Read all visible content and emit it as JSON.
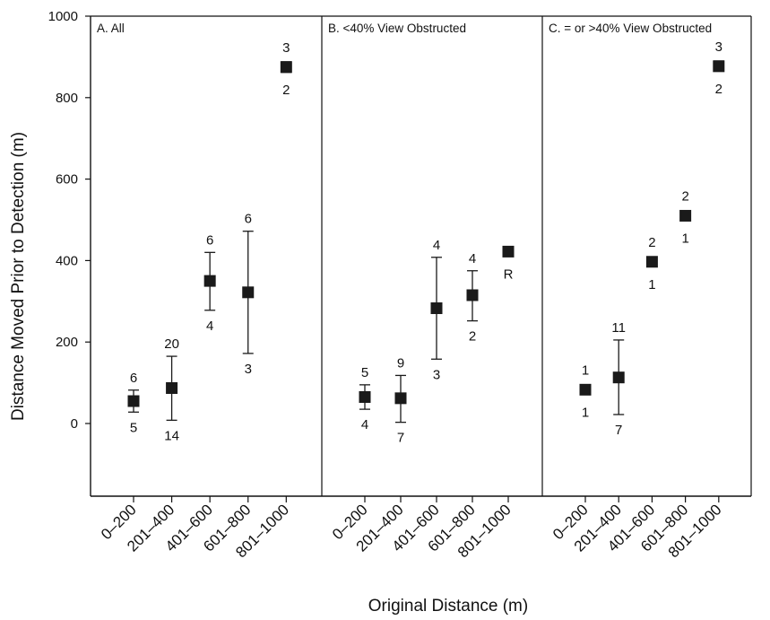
{
  "chart_data": {
    "type": "scatter",
    "xlabel": "Original Distance (m)",
    "ylabel": "Distance Moved Prior to Detection (m)",
    "ylim": [
      -180,
      1000
    ],
    "yticks": [
      0,
      200,
      400,
      600,
      800,
      1000
    ],
    "grid": false,
    "categories": [
      "0–200",
      "201–400",
      "401–600",
      "601–800",
      "801–1000"
    ],
    "panels": [
      {
        "title": "A. All",
        "points": [
          {
            "category": "0–200",
            "mean": 55,
            "lower": 28,
            "upper": 82,
            "n_above": "6",
            "n_below": "5"
          },
          {
            "category": "201–400",
            "mean": 87,
            "lower": 8,
            "upper": 165,
            "n_above": "20",
            "n_below": "14"
          },
          {
            "category": "401–600",
            "mean": 350,
            "lower": 278,
            "upper": 420,
            "n_above": "6",
            "n_below": "4"
          },
          {
            "category": "601–800",
            "mean": 322,
            "lower": 172,
            "upper": 472,
            "n_above": "6",
            "n_below": "3"
          },
          {
            "category": "801–1000",
            "mean": 875,
            "lower": 862,
            "upper": 888,
            "n_above": "3",
            "n_below": "2"
          }
        ]
      },
      {
        "title": "B. <40% View Obstructed",
        "points": [
          {
            "category": "0–200",
            "mean": 65,
            "lower": 35,
            "upper": 95,
            "n_above": "5",
            "n_below": "4"
          },
          {
            "category": "201–400",
            "mean": 62,
            "lower": 3,
            "upper": 118,
            "n_above": "9",
            "n_below": "7"
          },
          {
            "category": "401–600",
            "mean": 283,
            "lower": 158,
            "upper": 408,
            "n_above": "4",
            "n_below": "3"
          },
          {
            "category": "601–800",
            "mean": 315,
            "lower": 252,
            "upper": 375,
            "n_above": "4",
            "n_below": "2"
          },
          {
            "category": "801–1000",
            "mean": 422,
            "lower": null,
            "upper": null,
            "n_above": "",
            "n_below": "R"
          }
        ]
      },
      {
        "title": "C. = or >40% View Obstructed",
        "points": [
          {
            "category": "0–200",
            "mean": 83,
            "lower": null,
            "upper": null,
            "n_above": "1",
            "n_below": "1"
          },
          {
            "category": "201–400",
            "mean": 113,
            "lower": 22,
            "upper": 205,
            "n_above": "11",
            "n_below": "7"
          },
          {
            "category": "401–600",
            "mean": 397,
            "lower": null,
            "upper": null,
            "n_above": "2",
            "n_below": "1"
          },
          {
            "category": "601–800",
            "mean": 510,
            "lower": null,
            "upper": null,
            "n_above": "2",
            "n_below": "1"
          },
          {
            "category": "801–1000",
            "mean": 877,
            "lower": 865,
            "upper": 890,
            "n_above": "3",
            "n_below": "2"
          }
        ]
      }
    ]
  },
  "colors": {
    "marker": "#1a1a1a",
    "axis": "#111111"
  }
}
